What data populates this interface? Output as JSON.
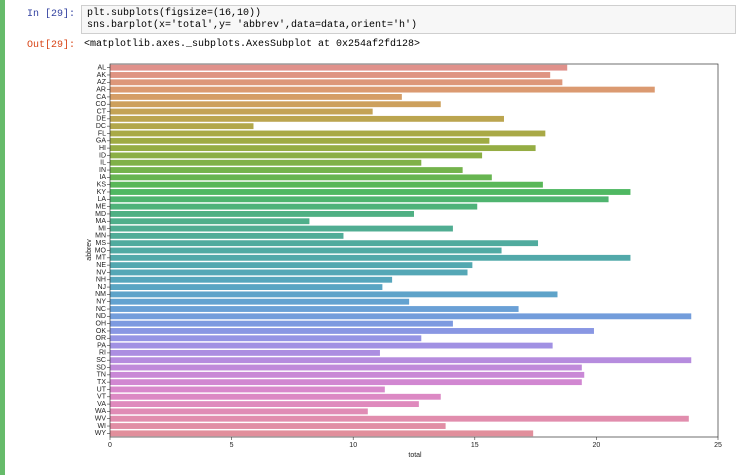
{
  "cells": [
    {
      "prompt": "In [29]:",
      "code": [
        "plt.subplots(figsize=(16,10))",
        "sns.barplot(x='total',y= 'abbrev',data=data,orient='h')"
      ]
    },
    {
      "prompt": "Out[29]:",
      "text": "<matplotlib.axes._subplots.AxesSubplot at 0x254af2fd128>"
    }
  ],
  "chart_data": {
    "type": "barh",
    "xlabel": "total",
    "ylabel": "abbrev",
    "categories": [
      "AL",
      "AK",
      "AZ",
      "AR",
      "CA",
      "CO",
      "CT",
      "DE",
      "DC",
      "FL",
      "GA",
      "HI",
      "ID",
      "IL",
      "IN",
      "IA",
      "KS",
      "KY",
      "LA",
      "ME",
      "MD",
      "MA",
      "MI",
      "MN",
      "MS",
      "MO",
      "MT",
      "NE",
      "NV",
      "NH",
      "NJ",
      "NM",
      "NY",
      "NC",
      "ND",
      "OH",
      "OK",
      "OR",
      "PA",
      "RI",
      "SC",
      "SD",
      "TN",
      "TX",
      "UT",
      "VT",
      "VA",
      "WA",
      "WV",
      "WI",
      "WY"
    ],
    "values": [
      18.8,
      18.1,
      18.6,
      22.4,
      12.0,
      13.6,
      10.8,
      16.2,
      5.9,
      17.9,
      15.6,
      17.5,
      15.3,
      12.8,
      14.5,
      15.7,
      17.8,
      21.4,
      20.5,
      15.1,
      12.5,
      8.2,
      14.1,
      9.6,
      17.6,
      16.1,
      21.4,
      14.9,
      14.7,
      11.6,
      11.2,
      18.4,
      12.3,
      16.8,
      23.9,
      14.1,
      19.9,
      12.8,
      18.2,
      11.1,
      23.9,
      19.4,
      19.5,
      19.4,
      11.3,
      13.6,
      12.7,
      10.6,
      23.8,
      13.8,
      17.4
    ],
    "colors": [
      "#e0918b",
      "#df9482",
      "#dd977a",
      "#db9a71",
      "#d59d66",
      "#cda05c",
      "#c4a355",
      "#bba54f",
      "#b2a74a",
      "#a9a946",
      "#9fab44",
      "#95ad44",
      "#8baf45",
      "#80b148",
      "#74b34c",
      "#67b551",
      "#59b758",
      "#4fb862",
      "#4fb46f",
      "#4fb27a",
      "#4fb083",
      "#4faf8b",
      "#50ad92",
      "#50ac98",
      "#50ab9e",
      "#51aaa4",
      "#52a9aa",
      "#53a8b0",
      "#55a7b6",
      "#57a6bc",
      "#5aa5c3",
      "#5ea3c9",
      "#63a2d0",
      "#6aa0d6",
      "#739ddb",
      "#7d9ae0",
      "#8997e3",
      "#9594e4",
      "#a191e3",
      "#ac8ee1",
      "#b68cde",
      "#c08ada",
      "#c988d6",
      "#d187d1",
      "#d888cb",
      "#dc89c4",
      "#df8abd",
      "#e08cb5",
      "#e18dad",
      "#e18ea5",
      "#e18f9c"
    ],
    "xlim": [
      0,
      25
    ],
    "xticks": [
      0,
      5,
      10,
      15,
      20,
      25
    ]
  }
}
